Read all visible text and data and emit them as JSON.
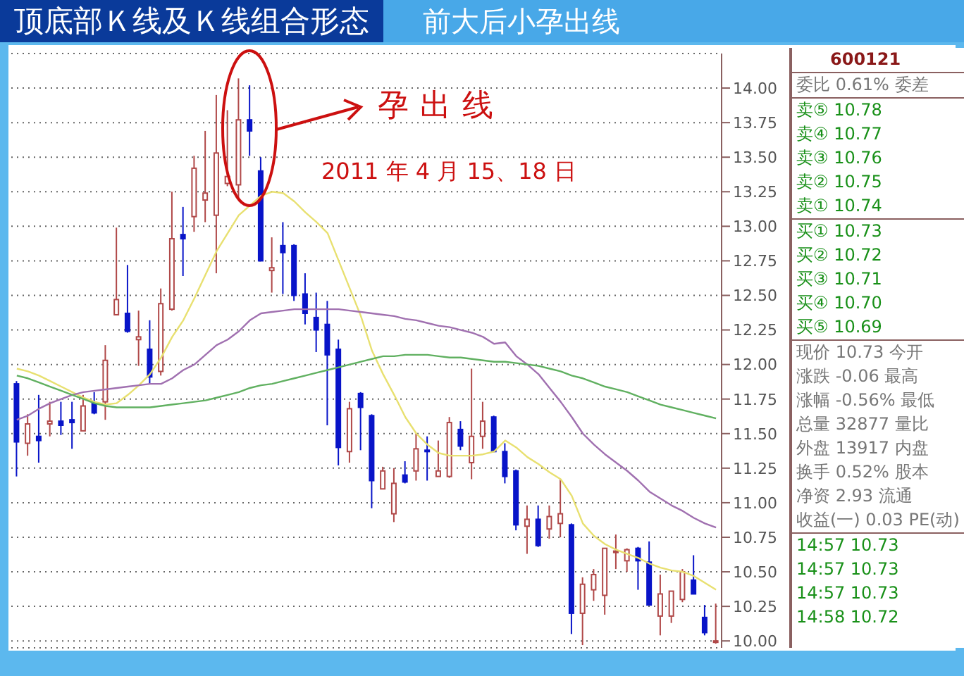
{
  "chart_data": [
    {
      "type": "candlestick",
      "title": "顶底部Ｋ线及Ｋ线组合形态",
      "subtitle": "前大后小孕出线",
      "categories": [
        null,
        null,
        null,
        null,
        null,
        null,
        null,
        null,
        null,
        null,
        null,
        null,
        null,
        null,
        null,
        null,
        null,
        null,
        null,
        null,
        null,
        null,
        null,
        null,
        null,
        null,
        null,
        null,
        null,
        null,
        null,
        null,
        null,
        null,
        null,
        null,
        null,
        null,
        null,
        null,
        null,
        null,
        null,
        null,
        null,
        null,
        null,
        null,
        null,
        null,
        null,
        null,
        null,
        null,
        null,
        null,
        null,
        null,
        null,
        null,
        null,
        null,
        null,
        null
      ],
      "ohlc": [
        [
          11.86,
          11.88,
          11.19,
          11.44
        ],
        [
          11.43,
          11.64,
          11.34,
          11.57
        ],
        [
          11.48,
          11.78,
          11.29,
          11.45
        ],
        [
          11.57,
          11.73,
          11.48,
          11.59
        ],
        [
          11.59,
          11.73,
          11.49,
          11.56
        ],
        [
          11.6,
          11.73,
          11.39,
          11.58
        ],
        [
          11.52,
          11.78,
          11.52,
          11.7
        ],
        [
          11.72,
          11.8,
          11.64,
          11.65
        ],
        [
          11.73,
          12.14,
          11.6,
          12.03
        ],
        [
          12.36,
          12.99,
          12.36,
          12.47
        ],
        [
          12.37,
          12.72,
          12.23,
          12.24
        ],
        [
          12.18,
          12.39,
          11.99,
          12.2
        ],
        [
          12.11,
          12.32,
          11.86,
          11.91
        ],
        [
          11.95,
          12.55,
          11.92,
          12.44
        ],
        [
          12.4,
          13.25,
          12.39,
          12.91
        ],
        [
          12.94,
          13.14,
          12.64,
          12.91
        ],
        [
          13.07,
          13.51,
          12.96,
          13.42
        ],
        [
          13.19,
          13.69,
          13.03,
          13.24
        ],
        [
          13.08,
          13.95,
          12.66,
          13.53
        ],
        [
          13.31,
          13.84,
          13.29,
          13.36
        ],
        [
          13.3,
          14.07,
          13.2,
          13.77
        ],
        [
          13.77,
          14.02,
          13.51,
          13.69
        ],
        [
          13.4,
          13.5,
          12.75,
          12.75
        ],
        [
          12.68,
          12.92,
          12.52,
          12.7
        ],
        [
          12.86,
          13.03,
          12.51,
          12.81
        ],
        [
          12.86,
          12.87,
          12.46,
          12.5
        ],
        [
          12.51,
          12.66,
          12.29,
          12.37
        ],
        [
          12.34,
          12.52,
          12.09,
          12.25
        ],
        [
          12.29,
          12.46,
          11.56,
          12.07
        ],
        [
          12.11,
          12.18,
          11.27,
          11.4
        ],
        [
          11.37,
          11.73,
          11.29,
          11.68
        ],
        [
          11.79,
          11.8,
          11.38,
          11.69
        ],
        [
          11.63,
          11.64,
          10.96,
          11.16
        ],
        [
          11.1,
          11.26,
          11.1,
          11.23
        ],
        [
          10.92,
          11.25,
          10.86,
          11.14
        ],
        [
          11.2,
          11.3,
          11.14,
          11.15
        ],
        [
          11.23,
          11.5,
          11.16,
          11.39
        ],
        [
          11.38,
          11.48,
          11.16,
          11.37
        ],
        [
          11.19,
          11.45,
          11.19,
          11.23
        ],
        [
          11.19,
          11.62,
          11.18,
          11.58
        ],
        [
          11.53,
          11.59,
          11.38,
          11.41
        ],
        [
          11.29,
          11.97,
          11.17,
          11.48
        ],
        [
          11.48,
          11.73,
          11.39,
          11.59
        ],
        [
          11.62,
          11.63,
          11.37,
          11.37
        ],
        [
          11.37,
          11.43,
          11.14,
          11.19
        ],
        [
          11.23,
          11.24,
          10.8,
          10.84
        ],
        [
          10.83,
          10.98,
          10.63,
          10.88
        ],
        [
          10.88,
          10.98,
          10.68,
          10.69
        ],
        [
          10.81,
          10.98,
          10.74,
          10.9
        ],
        [
          10.85,
          11.17,
          10.75,
          10.92
        ],
        [
          10.84,
          10.85,
          10.05,
          10.2
        ],
        [
          10.2,
          10.46,
          9.97,
          10.41
        ],
        [
          10.37,
          10.52,
          10.29,
          10.48
        ],
        [
          10.33,
          10.67,
          10.19,
          10.67
        ],
        [
          10.64,
          10.77,
          10.52,
          10.65
        ],
        [
          10.58,
          10.67,
          10.5,
          10.66
        ],
        [
          10.67,
          10.68,
          10.37,
          10.58
        ],
        [
          10.57,
          10.72,
          10.26,
          10.26
        ],
        [
          10.18,
          10.48,
          10.04,
          10.34
        ],
        [
          10.18,
          10.36,
          10.13,
          10.36
        ],
        [
          10.3,
          10.52,
          10.28,
          10.5
        ],
        [
          10.44,
          10.62,
          10.34,
          10.34
        ],
        [
          10.17,
          10.26,
          10.04,
          10.06
        ],
        [
          10.0,
          10.27,
          9.98,
          10.0
        ]
      ],
      "series": [
        {
          "type": "line",
          "color": "#e8e070",
          "values": [
            11.97,
            11.95,
            11.92,
            11.88,
            11.84,
            11.8,
            11.76,
            11.73,
            11.71,
            11.72,
            11.78,
            11.85,
            11.93,
            12.05,
            12.2,
            12.32,
            12.48,
            12.65,
            12.82,
            12.95,
            13.08,
            13.15,
            13.22,
            13.25,
            13.24,
            13.18,
            13.1,
            13.03,
            12.95,
            12.75,
            12.55,
            12.35,
            12.1,
            11.93,
            11.78,
            11.62,
            11.5,
            11.42,
            11.36,
            11.34,
            11.34,
            11.34,
            11.35,
            11.37,
            11.45,
            11.4,
            11.33,
            11.28,
            11.22,
            11.17,
            11.05,
            10.85,
            10.76,
            10.7,
            10.66,
            10.63,
            10.6,
            10.56,
            10.53,
            10.51,
            10.5,
            10.47,
            10.42,
            10.37
          ]
        },
        {
          "type": "line",
          "color": "#a070b0",
          "values": [
            11.6,
            11.63,
            11.68,
            11.72,
            11.75,
            11.78,
            11.8,
            11.81,
            11.82,
            11.83,
            11.84,
            11.85,
            11.86,
            11.86,
            11.9,
            11.96,
            12.0,
            12.07,
            12.14,
            12.18,
            12.24,
            12.32,
            12.37,
            12.38,
            12.39,
            12.4,
            12.4,
            12.4,
            12.4,
            12.4,
            12.39,
            12.38,
            12.37,
            12.36,
            12.35,
            12.33,
            12.32,
            12.3,
            12.28,
            12.27,
            12.25,
            12.23,
            12.2,
            12.15,
            12.16,
            12.06,
            12.0,
            11.93,
            11.83,
            11.73,
            11.62,
            11.5,
            11.42,
            11.35,
            11.29,
            11.23,
            11.16,
            11.08,
            11.03,
            10.98,
            10.94,
            10.89,
            10.85,
            10.82
          ]
        },
        {
          "type": "line",
          "color": "#60b060",
          "values": [
            11.92,
            11.9,
            11.87,
            11.84,
            11.81,
            11.78,
            11.75,
            11.72,
            11.7,
            11.69,
            11.69,
            11.69,
            11.69,
            11.7,
            11.71,
            11.72,
            11.73,
            11.74,
            11.76,
            11.78,
            11.8,
            11.83,
            11.85,
            11.86,
            11.88,
            11.9,
            11.92,
            11.94,
            11.96,
            11.98,
            12.0,
            12.02,
            12.04,
            12.06,
            12.06,
            12.07,
            12.07,
            12.07,
            12.06,
            12.05,
            12.05,
            12.04,
            12.03,
            12.02,
            12.02,
            12.01,
            12.0,
            11.99,
            11.97,
            11.95,
            11.92,
            11.9,
            11.87,
            11.84,
            11.82,
            11.8,
            11.77,
            11.74,
            11.71,
            11.69,
            11.67,
            11.65,
            11.63,
            11.61
          ]
        }
      ],
      "ylim": [
        9.95,
        14.25
      ],
      "yticks": [
        {
          "value": 10,
          "label": "10.00"
        },
        10.25,
        {
          "value": 10.5,
          "label": "10.50"
        },
        10.75,
        {
          "value": 11,
          "label": "11.00"
        },
        11.25,
        {
          "value": 11.5,
          "label": "11.50"
        },
        11.75,
        {
          "value": 12,
          "label": "12.00"
        },
        12.25,
        {
          "value": 12.5,
          "label": "12.50"
        },
        12.75,
        {
          "value": 13,
          "label": "13.00"
        },
        13.25,
        {
          "value": 13.5,
          "label": "13.50"
        },
        13.75,
        {
          "value": 14,
          "label": "14.00"
        }
      ],
      "grid": "y",
      "tick_labels": "y",
      "annotations": [
        "孕出线",
        "2011 年 4 月 15、18 日"
      ]
    },
    {
      "type": "other",
      "annotations": [
        "600121",
        "委比 0.61% 委差",
        "卖⑤ 10.78",
        "卖④ 10.77",
        "卖③ 10.76",
        "卖② 10.75",
        "卖① 10.74",
        "买① 10.73",
        "买② 10.72",
        "买③ 10.71",
        "买④ 10.70",
        "买⑤ 10.69",
        "现价 10.73 今开",
        "涨跌 -0.06 最高",
        "涨幅 -0.56% 最低",
        "总量 32877 量比",
        "外盘 13917 内盘",
        "换手 0.52% 股本",
        "净资 2.93 流通",
        "收益(一) 0.03 PE(动)",
        "14:57 10.73",
        "14:57 10.73",
        "14:57 10.73",
        "14:58 10.72"
      ]
    }
  ]
}
